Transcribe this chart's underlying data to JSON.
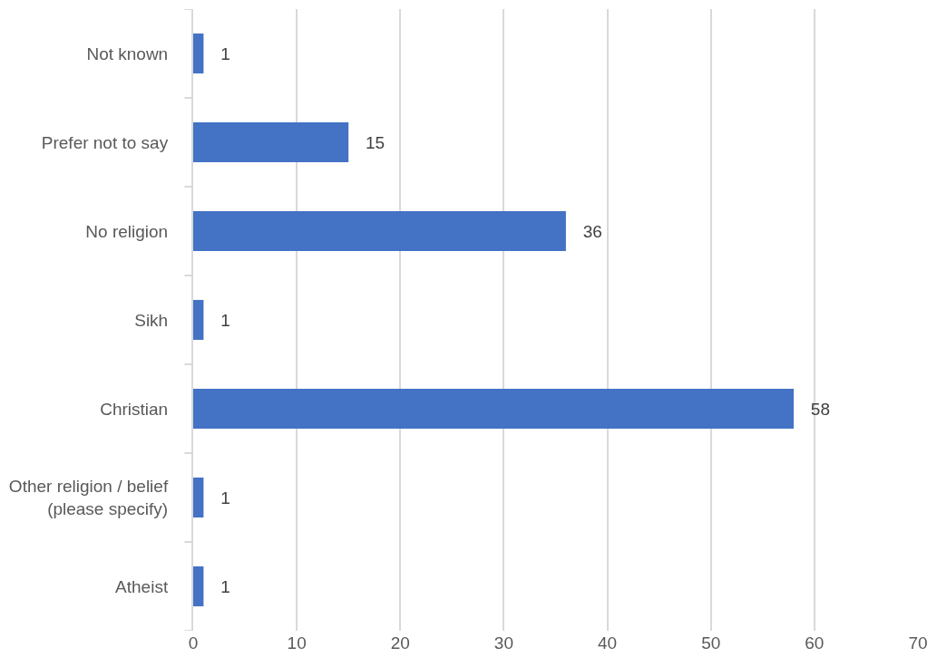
{
  "chart_data": {
    "type": "bar",
    "orientation": "horizontal",
    "categories": [
      "Not known",
      "Prefer not to say",
      "No religion",
      "Sikh",
      "Christian",
      "Other religion / belief (please specify)",
      "Atheist"
    ],
    "values": [
      1,
      15,
      36,
      1,
      58,
      1,
      1
    ],
    "color": "#4472c4",
    "xlim": [
      0,
      70
    ],
    "xticks": [
      0,
      10,
      20,
      30,
      40,
      50,
      60,
      70
    ],
    "grid": "x",
    "data_labels": true
  }
}
